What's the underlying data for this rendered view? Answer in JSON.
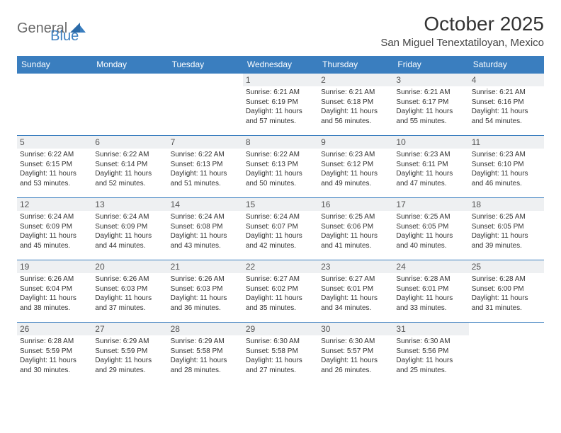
{
  "logo": {
    "word1": "General",
    "word2": "Blue"
  },
  "header": {
    "month_title": "October 2025",
    "location": "San Miguel Tenextatiloyan, Mexico"
  },
  "colors": {
    "header_bg": "#3a7ebf",
    "header_text": "#ffffff",
    "daynum_bg": "#eef0f2",
    "cell_border": "#3a7ebf",
    "logo_gray": "#6a6a6a",
    "logo_blue": "#3a7ebf",
    "text": "#333333"
  },
  "typography": {
    "month_title_fontsize": 28,
    "location_fontsize": 15,
    "dayheader_fontsize": 12,
    "daynum_fontsize": 12,
    "dayinfo_fontsize": 10
  },
  "day_headers": [
    "Sunday",
    "Monday",
    "Tuesday",
    "Wednesday",
    "Thursday",
    "Friday",
    "Saturday"
  ],
  "weeks": [
    [
      {
        "n": "",
        "sr": "",
        "ss": "",
        "dl": ""
      },
      {
        "n": "",
        "sr": "",
        "ss": "",
        "dl": ""
      },
      {
        "n": "",
        "sr": "",
        "ss": "",
        "dl": ""
      },
      {
        "n": "1",
        "sr": "Sunrise: 6:21 AM",
        "ss": "Sunset: 6:19 PM",
        "dl": "Daylight: 11 hours and 57 minutes."
      },
      {
        "n": "2",
        "sr": "Sunrise: 6:21 AM",
        "ss": "Sunset: 6:18 PM",
        "dl": "Daylight: 11 hours and 56 minutes."
      },
      {
        "n": "3",
        "sr": "Sunrise: 6:21 AM",
        "ss": "Sunset: 6:17 PM",
        "dl": "Daylight: 11 hours and 55 minutes."
      },
      {
        "n": "4",
        "sr": "Sunrise: 6:21 AM",
        "ss": "Sunset: 6:16 PM",
        "dl": "Daylight: 11 hours and 54 minutes."
      }
    ],
    [
      {
        "n": "5",
        "sr": "Sunrise: 6:22 AM",
        "ss": "Sunset: 6:15 PM",
        "dl": "Daylight: 11 hours and 53 minutes."
      },
      {
        "n": "6",
        "sr": "Sunrise: 6:22 AM",
        "ss": "Sunset: 6:14 PM",
        "dl": "Daylight: 11 hours and 52 minutes."
      },
      {
        "n": "7",
        "sr": "Sunrise: 6:22 AM",
        "ss": "Sunset: 6:13 PM",
        "dl": "Daylight: 11 hours and 51 minutes."
      },
      {
        "n": "8",
        "sr": "Sunrise: 6:22 AM",
        "ss": "Sunset: 6:13 PM",
        "dl": "Daylight: 11 hours and 50 minutes."
      },
      {
        "n": "9",
        "sr": "Sunrise: 6:23 AM",
        "ss": "Sunset: 6:12 PM",
        "dl": "Daylight: 11 hours and 49 minutes."
      },
      {
        "n": "10",
        "sr": "Sunrise: 6:23 AM",
        "ss": "Sunset: 6:11 PM",
        "dl": "Daylight: 11 hours and 47 minutes."
      },
      {
        "n": "11",
        "sr": "Sunrise: 6:23 AM",
        "ss": "Sunset: 6:10 PM",
        "dl": "Daylight: 11 hours and 46 minutes."
      }
    ],
    [
      {
        "n": "12",
        "sr": "Sunrise: 6:24 AM",
        "ss": "Sunset: 6:09 PM",
        "dl": "Daylight: 11 hours and 45 minutes."
      },
      {
        "n": "13",
        "sr": "Sunrise: 6:24 AM",
        "ss": "Sunset: 6:09 PM",
        "dl": "Daylight: 11 hours and 44 minutes."
      },
      {
        "n": "14",
        "sr": "Sunrise: 6:24 AM",
        "ss": "Sunset: 6:08 PM",
        "dl": "Daylight: 11 hours and 43 minutes."
      },
      {
        "n": "15",
        "sr": "Sunrise: 6:24 AM",
        "ss": "Sunset: 6:07 PM",
        "dl": "Daylight: 11 hours and 42 minutes."
      },
      {
        "n": "16",
        "sr": "Sunrise: 6:25 AM",
        "ss": "Sunset: 6:06 PM",
        "dl": "Daylight: 11 hours and 41 minutes."
      },
      {
        "n": "17",
        "sr": "Sunrise: 6:25 AM",
        "ss": "Sunset: 6:05 PM",
        "dl": "Daylight: 11 hours and 40 minutes."
      },
      {
        "n": "18",
        "sr": "Sunrise: 6:25 AM",
        "ss": "Sunset: 6:05 PM",
        "dl": "Daylight: 11 hours and 39 minutes."
      }
    ],
    [
      {
        "n": "19",
        "sr": "Sunrise: 6:26 AM",
        "ss": "Sunset: 6:04 PM",
        "dl": "Daylight: 11 hours and 38 minutes."
      },
      {
        "n": "20",
        "sr": "Sunrise: 6:26 AM",
        "ss": "Sunset: 6:03 PM",
        "dl": "Daylight: 11 hours and 37 minutes."
      },
      {
        "n": "21",
        "sr": "Sunrise: 6:26 AM",
        "ss": "Sunset: 6:03 PM",
        "dl": "Daylight: 11 hours and 36 minutes."
      },
      {
        "n": "22",
        "sr": "Sunrise: 6:27 AM",
        "ss": "Sunset: 6:02 PM",
        "dl": "Daylight: 11 hours and 35 minutes."
      },
      {
        "n": "23",
        "sr": "Sunrise: 6:27 AM",
        "ss": "Sunset: 6:01 PM",
        "dl": "Daylight: 11 hours and 34 minutes."
      },
      {
        "n": "24",
        "sr": "Sunrise: 6:28 AM",
        "ss": "Sunset: 6:01 PM",
        "dl": "Daylight: 11 hours and 33 minutes."
      },
      {
        "n": "25",
        "sr": "Sunrise: 6:28 AM",
        "ss": "Sunset: 6:00 PM",
        "dl": "Daylight: 11 hours and 31 minutes."
      }
    ],
    [
      {
        "n": "26",
        "sr": "Sunrise: 6:28 AM",
        "ss": "Sunset: 5:59 PM",
        "dl": "Daylight: 11 hours and 30 minutes."
      },
      {
        "n": "27",
        "sr": "Sunrise: 6:29 AM",
        "ss": "Sunset: 5:59 PM",
        "dl": "Daylight: 11 hours and 29 minutes."
      },
      {
        "n": "28",
        "sr": "Sunrise: 6:29 AM",
        "ss": "Sunset: 5:58 PM",
        "dl": "Daylight: 11 hours and 28 minutes."
      },
      {
        "n": "29",
        "sr": "Sunrise: 6:30 AM",
        "ss": "Sunset: 5:58 PM",
        "dl": "Daylight: 11 hours and 27 minutes."
      },
      {
        "n": "30",
        "sr": "Sunrise: 6:30 AM",
        "ss": "Sunset: 5:57 PM",
        "dl": "Daylight: 11 hours and 26 minutes."
      },
      {
        "n": "31",
        "sr": "Sunrise: 6:30 AM",
        "ss": "Sunset: 5:56 PM",
        "dl": "Daylight: 11 hours and 25 minutes."
      },
      {
        "n": "",
        "sr": "",
        "ss": "",
        "dl": ""
      }
    ]
  ]
}
